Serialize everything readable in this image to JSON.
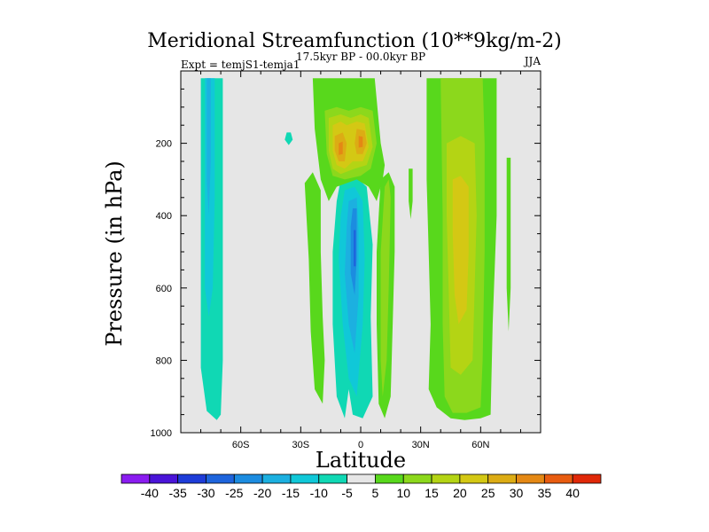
{
  "chart_data": {
    "type": "filled-contour",
    "title": "Meridional Streamfunction (10**9kg/m-2)",
    "left_string": "Expt = temjS1-temja1",
    "center_string": "17.5kyr BP - 00.0kyr BP",
    "right_string": "JJA",
    "xlabel": "Latitude",
    "ylabel": "Pressure (in hPa)",
    "x_ticks": [
      {
        "value": -60,
        "label": "60S"
      },
      {
        "value": -30,
        "label": "30S"
      },
      {
        "value": 0,
        "label": "0"
      },
      {
        "value": 30,
        "label": "30N"
      },
      {
        "value": 60,
        "label": "60N"
      }
    ],
    "y_ticks": [
      {
        "value": 200,
        "label": "200"
      },
      {
        "value": 400,
        "label": "400"
      },
      {
        "value": 600,
        "label": "600"
      },
      {
        "value": 800,
        "label": "800"
      },
      {
        "value": 1000,
        "label": "1000"
      }
    ],
    "xlim": [
      -90,
      90
    ],
    "ylim": [
      1000,
      0
    ],
    "levels": [
      -40,
      -35,
      -30,
      -25,
      -20,
      -15,
      -10,
      -5,
      5,
      10,
      15,
      20,
      25,
      30,
      35,
      40
    ],
    "colors": [
      "#8a1cf0",
      "#4a14d8",
      "#1e3cd8",
      "#1e64dc",
      "#1c8ce0",
      "#1cb0e0",
      "#10c8d8",
      "#10d8b4",
      "#e6e6e6",
      "#58d81c",
      "#8cd81c",
      "#b4d414",
      "#d4c814",
      "#dcac14",
      "#e48814",
      "#e85c10",
      "#e02808"
    ],
    "regions": [
      {
        "name": "sh-polar-cell-outer",
        "value": -7,
        "points": [
          [
            -80,
            20
          ],
          [
            -69,
            20
          ],
          [
            -69,
            800
          ],
          [
            -70,
            950
          ],
          [
            -72,
            965
          ],
          [
            -77,
            940
          ],
          [
            -80,
            820
          ]
        ]
      },
      {
        "name": "sh-polar-cell-core",
        "value": -12,
        "points": [
          [
            -78,
            20
          ],
          [
            -73,
            20
          ],
          [
            -73,
            350
          ],
          [
            -74,
            600
          ],
          [
            -76,
            680
          ],
          [
            -78,
            600
          ]
        ]
      },
      {
        "name": "sh-polar-cell-inner",
        "value": -17,
        "points": [
          [
            -77,
            20
          ],
          [
            -75,
            20
          ],
          [
            -75,
            250
          ],
          [
            -76,
            400
          ],
          [
            -77,
            300
          ]
        ]
      },
      {
        "name": "hadley-south-outer",
        "value": -7,
        "points": [
          [
            -10,
            300
          ],
          [
            -3,
            290
          ],
          [
            3,
            320
          ],
          [
            6,
            480
          ],
          [
            5,
            680
          ],
          [
            6,
            900
          ],
          [
            1,
            960
          ],
          [
            -4,
            950
          ],
          [
            -6,
            880
          ],
          [
            -8,
            960
          ],
          [
            -12,
            900
          ],
          [
            -14,
            700
          ],
          [
            -14,
            500
          ],
          [
            -12,
            360
          ]
        ]
      },
      {
        "name": "hadley-south-mid",
        "value": -12,
        "points": [
          [
            -8,
            330
          ],
          [
            -3,
            320
          ],
          [
            1,
            360
          ],
          [
            2,
            520
          ],
          [
            1,
            700
          ],
          [
            -2,
            900
          ],
          [
            -6,
            850
          ],
          [
            -9,
            700
          ],
          [
            -11,
            520
          ],
          [
            -10,
            400
          ]
        ]
      },
      {
        "name": "hadley-south-inner",
        "value": -17,
        "points": [
          [
            -6,
            360
          ],
          [
            -2,
            350
          ],
          [
            -1,
            450
          ],
          [
            -1,
            620
          ],
          [
            -3,
            780
          ],
          [
            -6,
            700
          ],
          [
            -8,
            560
          ],
          [
            -7,
            430
          ]
        ]
      },
      {
        "name": "hadley-south-core",
        "value": -22,
        "points": [
          [
            -4,
            380
          ],
          [
            -2,
            380
          ],
          [
            -2,
            520
          ],
          [
            -3,
            620
          ],
          [
            -5,
            560
          ],
          [
            -5,
            430
          ]
        ]
      },
      {
        "name": "hadley-south-peak",
        "value": -27,
        "points": [
          [
            -3.5,
            440
          ],
          [
            -2.5,
            440
          ],
          [
            -2.5,
            540
          ],
          [
            -3.5,
            540
          ]
        ]
      },
      {
        "name": "small-neg-patch",
        "value": -7,
        "points": [
          [
            -37,
            170
          ],
          [
            -35,
            170
          ],
          [
            -34,
            190
          ],
          [
            -36,
            205
          ],
          [
            -38,
            190
          ]
        ]
      },
      {
        "name": "upper-pos-outer",
        "value": 7,
        "points": [
          [
            -24,
            20
          ],
          [
            -8,
            20
          ],
          [
            0,
            20
          ],
          [
            7,
            20
          ],
          [
            10,
            200
          ],
          [
            12,
            260
          ],
          [
            11,
            300
          ],
          [
            8,
            360
          ],
          [
            4,
            320
          ],
          [
            -2,
            300
          ],
          [
            -12,
            320
          ],
          [
            -16,
            360
          ],
          [
            -20,
            300
          ],
          [
            -23,
            160
          ]
        ]
      },
      {
        "name": "upper-pos-mid",
        "value": 12,
        "points": [
          [
            -18,
            110
          ],
          [
            -12,
            100
          ],
          [
            -6,
            110
          ],
          [
            0,
            100
          ],
          [
            6,
            110
          ],
          [
            8,
            200
          ],
          [
            5,
            270
          ],
          [
            0,
            290
          ],
          [
            -8,
            300
          ],
          [
            -14,
            290
          ],
          [
            -17,
            230
          ]
        ]
      },
      {
        "name": "upper-pos-inner",
        "value": 17,
        "points": [
          [
            -16,
            130
          ],
          [
            -10,
            120
          ],
          [
            -5,
            130
          ],
          [
            0,
            120
          ],
          [
            4,
            130
          ],
          [
            6,
            210
          ],
          [
            3,
            260
          ],
          [
            -3,
            270
          ],
          [
            -10,
            285
          ],
          [
            -14,
            270
          ],
          [
            -16,
            220
          ]
        ]
      },
      {
        "name": "upper-pos-core",
        "value": 22,
        "points": [
          [
            -14,
            150
          ],
          [
            -10,
            140
          ],
          [
            -7,
            150
          ],
          [
            -2,
            140
          ],
          [
            2,
            145
          ],
          [
            4,
            210
          ],
          [
            1,
            250
          ],
          [
            -4,
            250
          ],
          [
            -8,
            270
          ],
          [
            -12,
            260
          ],
          [
            -14,
            220
          ]
        ]
      },
      {
        "name": "upper-pos-west",
        "value": 27,
        "points": [
          [
            -13,
            180
          ],
          [
            -9,
            170
          ],
          [
            -7,
            200
          ],
          [
            -8,
            250
          ],
          [
            -11,
            250
          ],
          [
            -13,
            220
          ]
        ]
      },
      {
        "name": "upper-pos-east",
        "value": 27,
        "points": [
          [
            -2,
            160
          ],
          [
            2,
            165
          ],
          [
            3,
            200
          ],
          [
            1,
            230
          ],
          [
            -2,
            230
          ],
          [
            -3,
            200
          ]
        ]
      },
      {
        "name": "upper-pos-west-peak",
        "value": 32,
        "points": [
          [
            -11,
            200
          ],
          [
            -9,
            195
          ],
          [
            -9,
            230
          ],
          [
            -11,
            232
          ]
        ]
      },
      {
        "name": "upper-pos-east-peak",
        "value": 32,
        "points": [
          [
            -1,
            180
          ],
          [
            1,
            182
          ],
          [
            1,
            210
          ],
          [
            -1,
            212
          ]
        ]
      },
      {
        "name": "lower-pos-sw",
        "value": 7,
        "points": [
          [
            -28,
            310
          ],
          [
            -24,
            280
          ],
          [
            -20,
            330
          ],
          [
            -20,
            500
          ],
          [
            -19,
            680
          ],
          [
            -18,
            800
          ],
          [
            -19,
            920
          ],
          [
            -23,
            880
          ],
          [
            -25,
            720
          ],
          [
            -26,
            520
          ]
        ]
      },
      {
        "name": "lower-pos-mid",
        "value": 7,
        "points": [
          [
            10,
            300
          ],
          [
            14,
            280
          ],
          [
            17,
            320
          ],
          [
            17,
            500
          ],
          [
            16,
            700
          ],
          [
            15,
            900
          ],
          [
            12,
            960
          ],
          [
            9,
            920
          ],
          [
            8,
            700
          ],
          [
            8,
            500
          ]
        ]
      },
      {
        "name": "lower-pos-mid-inner",
        "value": 12,
        "points": [
          [
            12,
            320
          ],
          [
            14,
            300
          ],
          [
            15,
            350
          ],
          [
            14,
            600
          ],
          [
            13,
            800
          ],
          [
            11,
            900
          ],
          [
            10,
            800
          ],
          [
            10,
            500
          ]
        ]
      },
      {
        "name": "thin-pos-strip",
        "value": 7,
        "points": [
          [
            24,
            270
          ],
          [
            26,
            270
          ],
          [
            26,
            360
          ],
          [
            25,
            410
          ],
          [
            24,
            360
          ]
        ]
      },
      {
        "name": "nh-cell-outer",
        "value": 7,
        "points": [
          [
            33,
            20
          ],
          [
            55,
            20
          ],
          [
            68,
            20
          ],
          [
            68,
            400
          ],
          [
            66,
            700
          ],
          [
            65,
            950
          ],
          [
            60,
            960
          ],
          [
            52,
            965
          ],
          [
            45,
            960
          ],
          [
            38,
            930
          ],
          [
            34,
            880
          ],
          [
            35,
            700
          ],
          [
            34,
            500
          ],
          [
            33,
            300
          ]
        ]
      },
      {
        "name": "nh-cell-mid",
        "value": 12,
        "points": [
          [
            40,
            20
          ],
          [
            55,
            20
          ],
          [
            61,
            20
          ],
          [
            62,
            200
          ],
          [
            62,
            500
          ],
          [
            61,
            800
          ],
          [
            60,
            930
          ],
          [
            53,
            945
          ],
          [
            46,
            945
          ],
          [
            42,
            900
          ],
          [
            41,
            700
          ],
          [
            41,
            400
          ]
        ]
      },
      {
        "name": "nh-cell-inner",
        "value": 17,
        "points": [
          [
            43,
            200
          ],
          [
            50,
            180
          ],
          [
            57,
            200
          ],
          [
            58,
            400
          ],
          [
            57,
            600
          ],
          [
            56,
            800
          ],
          [
            50,
            840
          ],
          [
            45,
            820
          ],
          [
            44,
            600
          ],
          [
            43,
            400
          ]
        ]
      },
      {
        "name": "nh-cell-core",
        "value": 22,
        "points": [
          [
            46,
            300
          ],
          [
            50,
            290
          ],
          [
            54,
            320
          ],
          [
            54,
            500
          ],
          [
            53,
            660
          ],
          [
            49,
            700
          ],
          [
            47,
            620
          ],
          [
            46,
            450
          ]
        ]
      },
      {
        "name": "far-north-patch",
        "value": 7,
        "points": [
          [
            73,
            240
          ],
          [
            75,
            240
          ],
          [
            75,
            600
          ],
          [
            74,
            720
          ],
          [
            73,
            600
          ]
        ]
      }
    ]
  }
}
